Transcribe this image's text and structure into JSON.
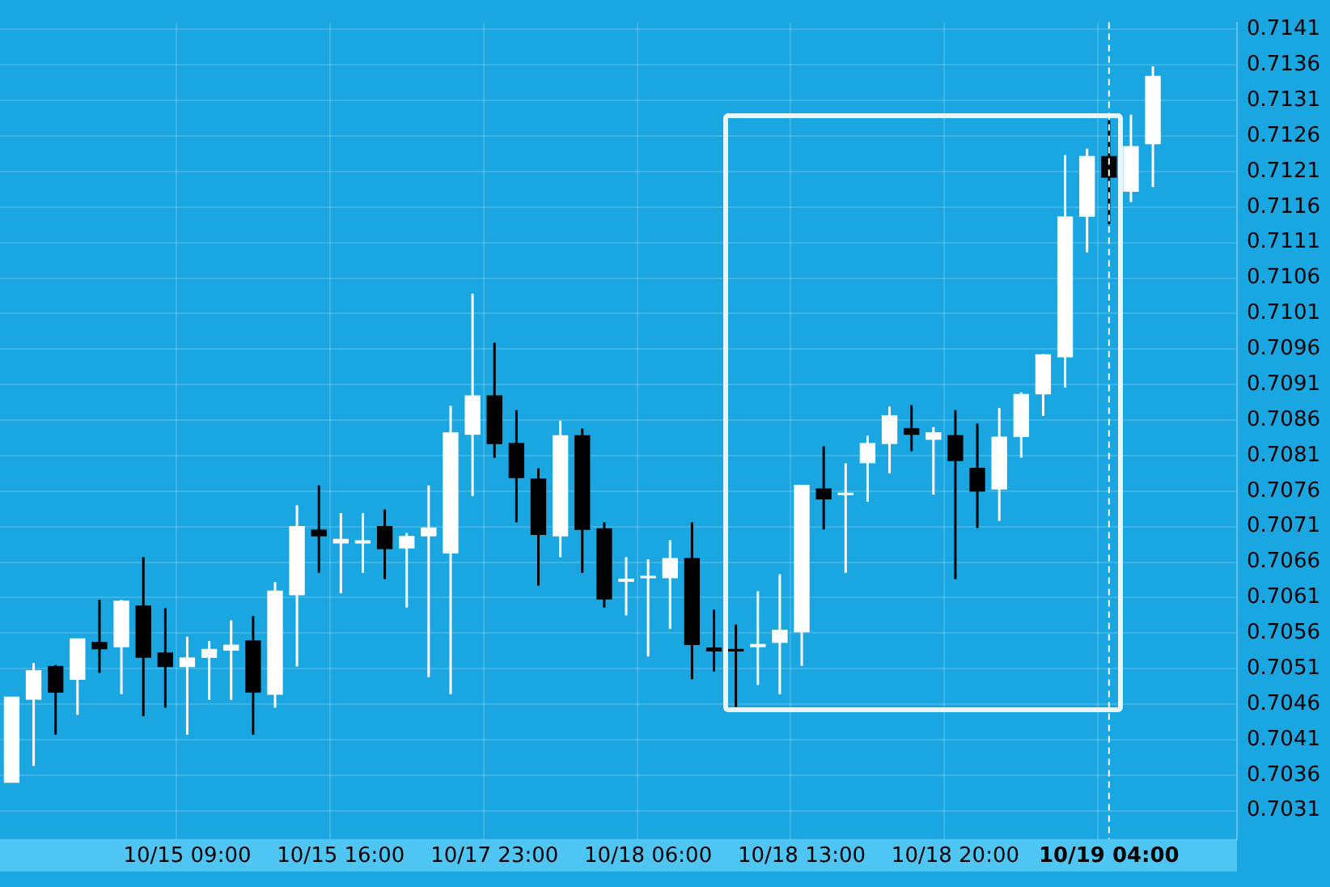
{
  "chart_data": {
    "type": "candlestick",
    "categories": [
      null,
      null,
      null,
      null,
      null,
      null,
      null,
      null,
      "10/15 09:00",
      null,
      null,
      null,
      null,
      null,
      null,
      "10/15 16:00",
      null,
      null,
      null,
      null,
      null,
      null,
      "10/17 23:00",
      null,
      null,
      null,
      null,
      null,
      null,
      "10/18 06:00",
      null,
      null,
      null,
      null,
      null,
      null,
      "10/18 13:00",
      null,
      null,
      null,
      null,
      null,
      null,
      "10/18 20:00",
      null,
      null,
      null,
      null,
      null,
      null,
      "10/19 04:00",
      null,
      null
    ],
    "ohlc": [
      [
        0.7035,
        0.7047,
        0.7035,
        0.7047
      ],
      [
        0.70467,
        0.70518,
        0.70373,
        0.70507
      ],
      [
        0.70513,
        0.70515,
        0.70417,
        0.70477
      ],
      [
        0.70495,
        0.70552,
        0.70445,
        0.70552
      ],
      [
        0.70547,
        0.70607,
        0.70504,
        0.70538
      ],
      [
        0.70541,
        0.70607,
        0.70474,
        0.70605
      ],
      [
        0.70598,
        0.70667,
        0.70443,
        0.70526
      ],
      [
        0.70532,
        0.70595,
        0.70455,
        0.70513
      ],
      [
        0.70513,
        0.70555,
        0.70417,
        0.70525
      ],
      [
        0.70526,
        0.70549,
        0.70466,
        0.70537
      ],
      [
        0.70536,
        0.70578,
        0.70466,
        0.70543
      ],
      [
        0.70549,
        0.70584,
        0.70417,
        0.70477
      ],
      [
        0.70474,
        0.70632,
        0.70455,
        0.70619
      ],
      [
        0.70614,
        0.7074,
        0.70513,
        0.7071
      ],
      [
        0.70705,
        0.70768,
        0.70645,
        0.70697
      ],
      [
        0.70687,
        0.70729,
        0.70616,
        0.70692
      ],
      [
        0.70687,
        0.70729,
        0.70645,
        0.7069
      ],
      [
        0.7071,
        0.70734,
        0.70636,
        0.70679
      ],
      [
        0.7068,
        0.70701,
        0.70596,
        0.70696
      ],
      [
        0.70697,
        0.70768,
        0.70498,
        0.70708
      ],
      [
        0.70673,
        0.7088,
        0.70474,
        0.70842
      ],
      [
        0.7084,
        0.71038,
        0.70753,
        0.70894
      ],
      [
        0.70894,
        0.70969,
        0.70807,
        0.70827
      ],
      [
        0.70827,
        0.70874,
        0.70716,
        0.70779
      ],
      [
        0.70777,
        0.70792,
        0.70627,
        0.70699
      ],
      [
        0.70697,
        0.70859,
        0.70667,
        0.70838
      ],
      [
        0.70838,
        0.70848,
        0.70645,
        0.70706
      ],
      [
        0.70707,
        0.70716,
        0.70596,
        0.70608
      ],
      [
        0.70633,
        0.70667,
        0.70585,
        0.70636
      ],
      [
        0.70638,
        0.70664,
        0.70527,
        0.7064
      ],
      [
        0.70638,
        0.70691,
        0.70566,
        0.70665
      ],
      [
        0.70665,
        0.70716,
        0.70495,
        0.70544
      ],
      [
        0.70539,
        0.70593,
        0.70506,
        0.70535
      ],
      [
        0.70537,
        0.70572,
        0.70456,
        0.70535
      ],
      [
        0.70541,
        0.70619,
        0.70487,
        0.70544
      ],
      [
        0.70547,
        0.70643,
        0.70474,
        0.70564
      ],
      [
        0.70562,
        0.70768,
        0.70514,
        0.70768
      ],
      [
        0.70763,
        0.70823,
        0.70706,
        0.70749
      ],
      [
        0.70755,
        0.70799,
        0.70645,
        0.70757
      ],
      [
        0.708,
        0.70838,
        0.70745,
        0.70827
      ],
      [
        0.70827,
        0.70879,
        0.70785,
        0.70866
      ],
      [
        0.70848,
        0.70881,
        0.70816,
        0.7084
      ],
      [
        0.70833,
        0.7085,
        0.70755,
        0.70842
      ],
      [
        0.70838,
        0.70874,
        0.70636,
        0.70803
      ],
      [
        0.70792,
        0.70855,
        0.70708,
        0.7076
      ],
      [
        0.70763,
        0.70877,
        0.70718,
        0.70836
      ],
      [
        0.70837,
        0.70899,
        0.70807,
        0.70896
      ],
      [
        0.70897,
        0.70953,
        0.70866,
        0.70952
      ],
      [
        0.70949,
        0.71233,
        0.70906,
        0.71146
      ],
      [
        0.71147,
        0.71242,
        0.71096,
        0.71231
      ],
      [
        0.71231,
        0.71282,
        0.71136,
        0.71202
      ],
      [
        0.71182,
        0.7129,
        0.71167,
        0.71245
      ],
      [
        0.71249,
        0.71358,
        0.71188,
        0.71344
      ]
    ],
    "ylim": [
      0.7027,
      0.7142
    ],
    "yticks": [
      0.7031,
      0.7036,
      0.7041,
      0.7046,
      0.7051,
      0.7056,
      0.7061,
      0.7066,
      0.7071,
      0.7076,
      0.7081,
      0.7086,
      0.7091,
      0.7096,
      0.7101,
      0.7106,
      0.7111,
      0.7116,
      0.7121,
      0.7126,
      0.7131,
      0.7136,
      0.7141
    ],
    "grid": true,
    "ref_lines": [
      {
        "axis": "x",
        "value": "10/19 04:00",
        "color": "#ffffff",
        "line_style": "dashed"
      }
    ]
  }
}
